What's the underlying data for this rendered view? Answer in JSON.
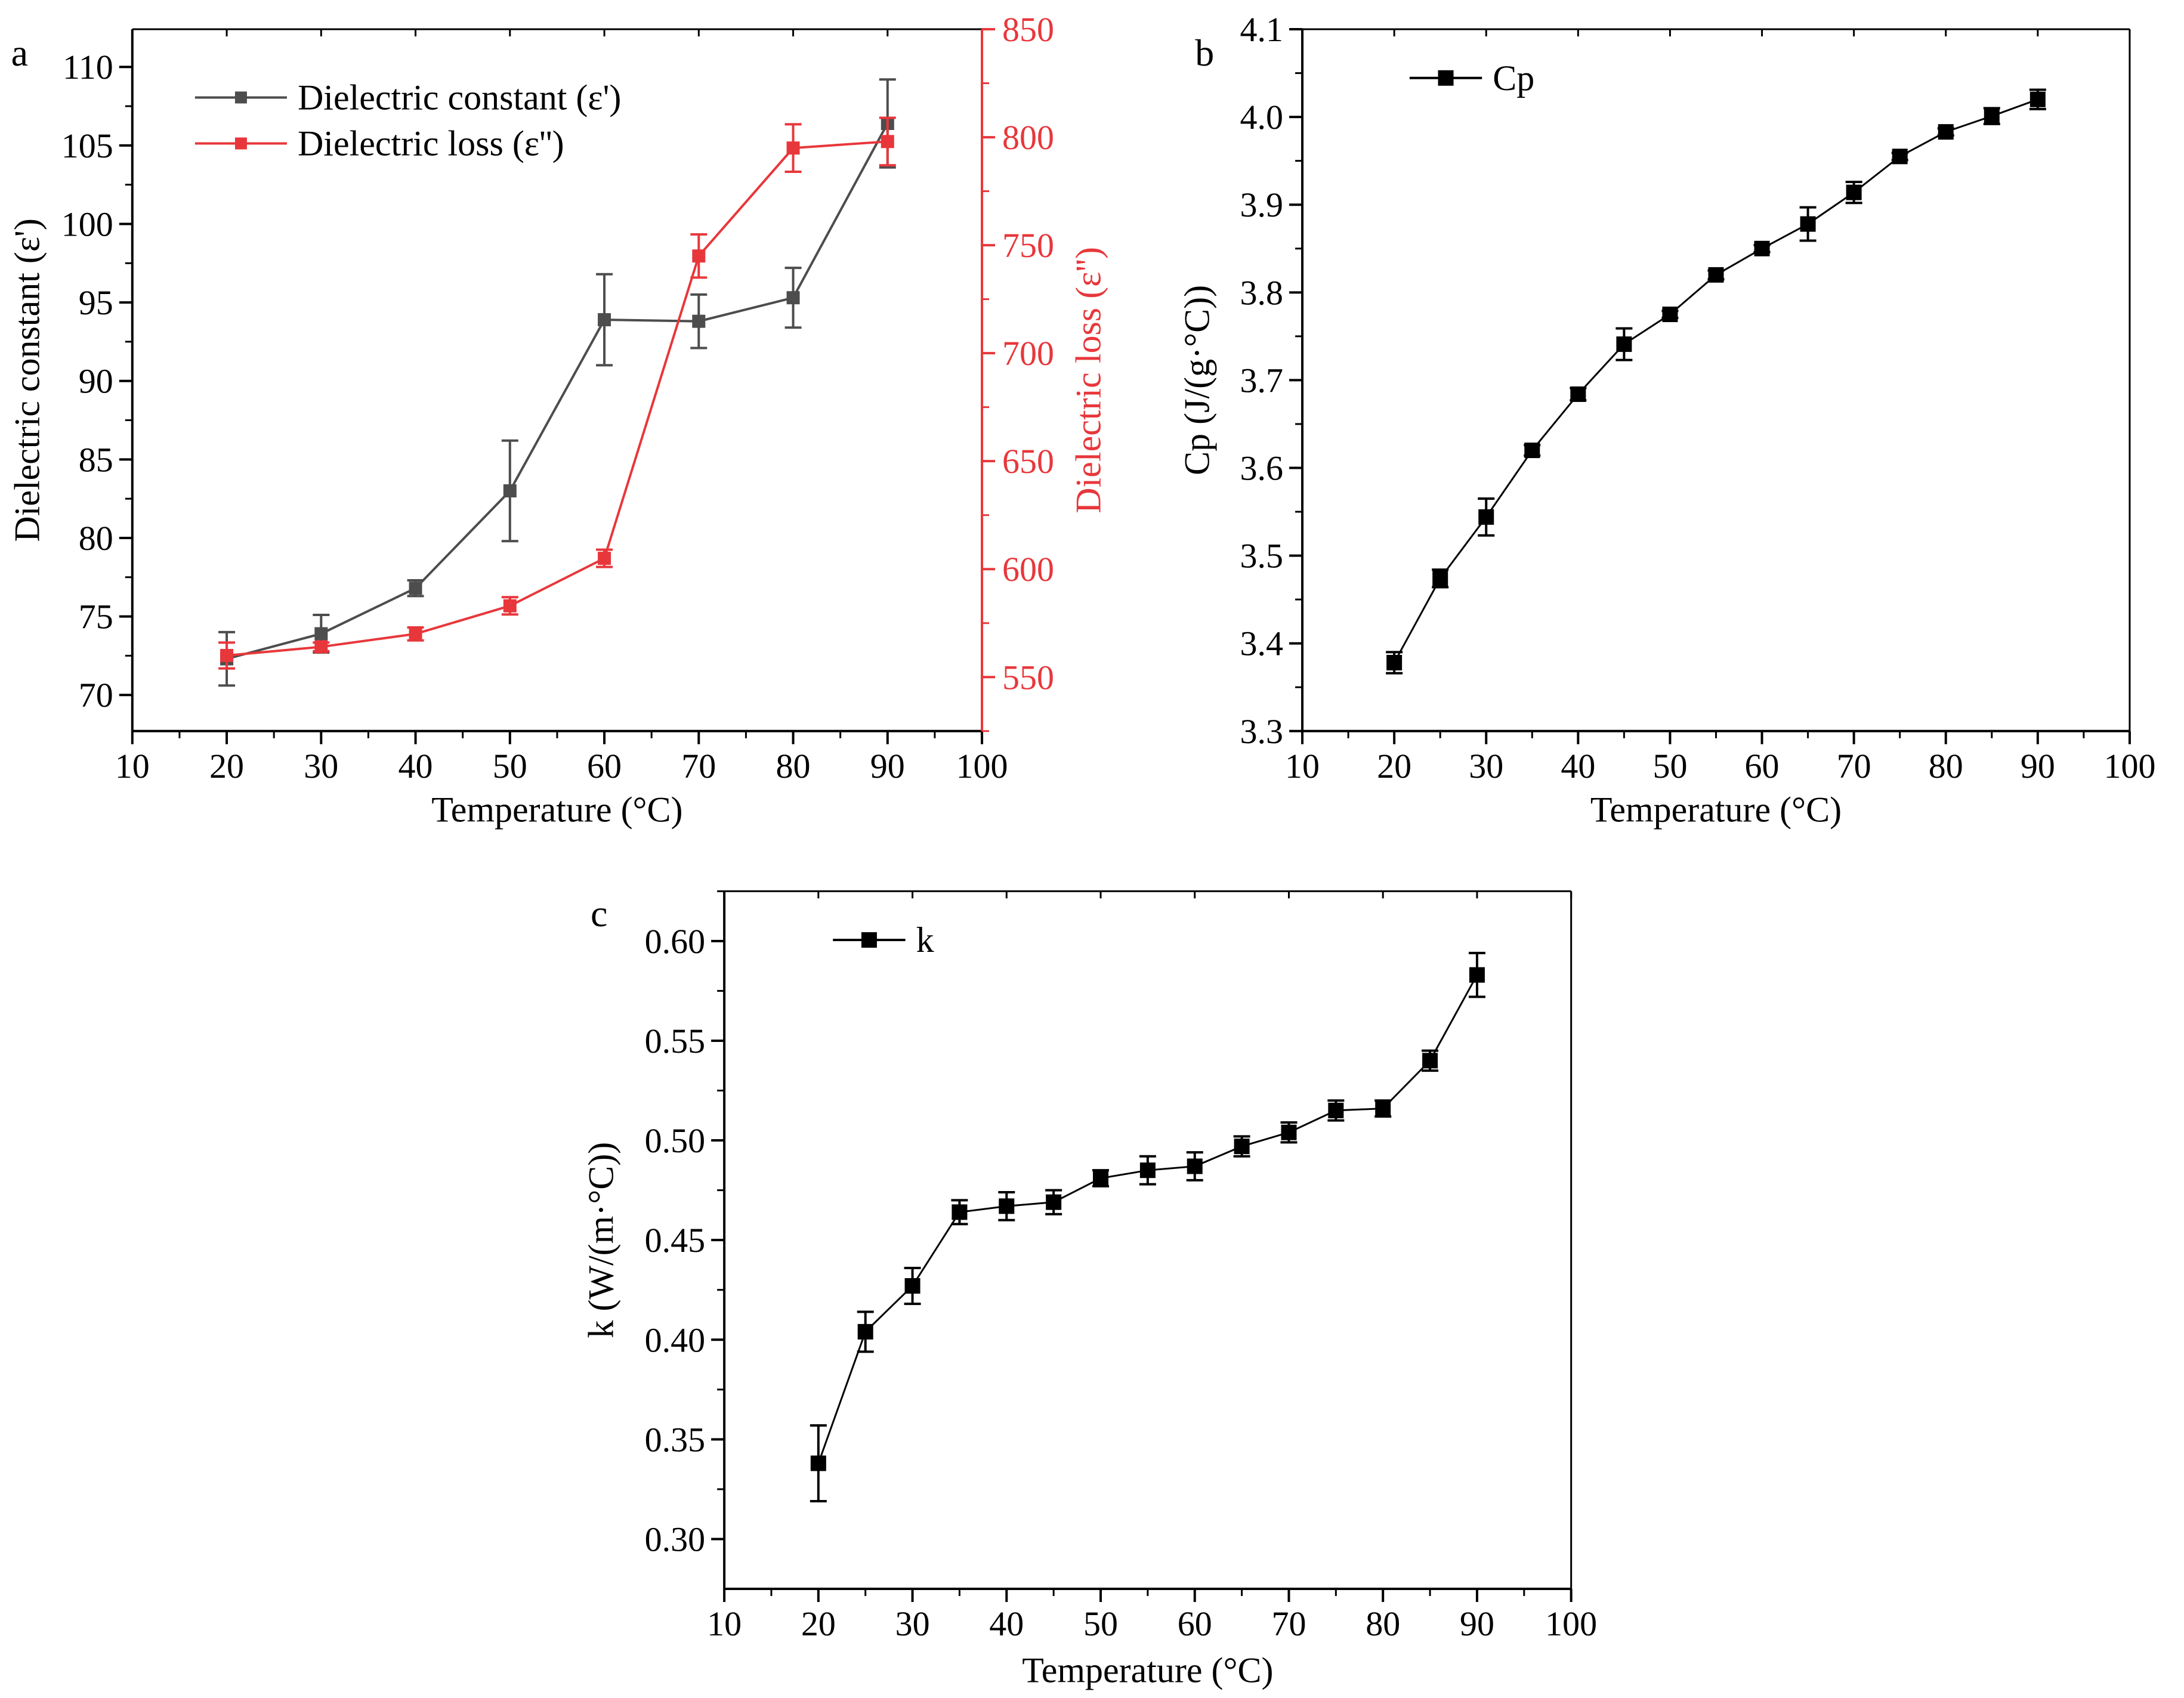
{
  "chart_data": [
    {
      "panel": "a",
      "type": "line",
      "title": "",
      "xlabel": "Temperature (°C)",
      "ylabel": "Dielectric constant (ε')",
      "y2label": "Dielectric loss (ε'')",
      "xlim": [
        10,
        100
      ],
      "ylim": [
        67.7,
        112.4
      ],
      "y2lim": [
        525,
        850
      ],
      "xticks": [
        10,
        20,
        30,
        40,
        50,
        60,
        70,
        80,
        90,
        100
      ],
      "yticks": [
        70,
        75,
        80,
        85,
        90,
        95,
        100,
        105,
        110
      ],
      "y2ticks": [
        550,
        600,
        650,
        700,
        750,
        800,
        850
      ],
      "legend_position": "top-left",
      "grid": false,
      "series": [
        {
          "name": "Dielectric constant (ε')",
          "axis": "left",
          "color": "#4d4d4d",
          "x": [
            20,
            30,
            40,
            50,
            60,
            70,
            80,
            90
          ],
          "y": [
            72.3,
            73.9,
            76.8,
            83.0,
            93.9,
            93.8,
            95.3,
            106.4
          ],
          "err": [
            1.7,
            1.2,
            0.5,
            3.2,
            2.9,
            1.7,
            1.9,
            2.8
          ]
        },
        {
          "name": "Dielectric loss (ε'')",
          "axis": "right",
          "color": "#e8373b",
          "x": [
            20,
            30,
            40,
            50,
            60,
            70,
            80,
            90
          ],
          "y": [
            560,
            564,
            570,
            583,
            605,
            745,
            795,
            798
          ],
          "err": [
            6,
            2,
            3,
            4,
            4,
            10,
            11,
            11
          ]
        }
      ]
    },
    {
      "panel": "b",
      "type": "line",
      "title": "",
      "xlabel": "Temperature (°C)",
      "ylabel": "Cp (J/(g·°C))",
      "xlim": [
        10,
        100
      ],
      "ylim": [
        3.3,
        4.1
      ],
      "xticks": [
        10,
        20,
        30,
        40,
        50,
        60,
        70,
        80,
        90,
        100
      ],
      "yticks": [
        3.3,
        3.4,
        3.5,
        3.6,
        3.7,
        3.8,
        3.9,
        4.0,
        4.1
      ],
      "ytick_labels": [
        "3.3",
        "3.4",
        "3.5",
        "3.6",
        "3.7",
        "3.8",
        "3.9",
        "4.0",
        "4.1"
      ],
      "legend_position": "top-left",
      "grid": false,
      "series": [
        {
          "name": "Cp",
          "color": "#000000",
          "x": [
            20,
            25,
            30,
            35,
            40,
            45,
            50,
            55,
            60,
            65,
            70,
            75,
            80,
            85,
            90
          ],
          "y": [
            3.378,
            3.474,
            3.544,
            3.62,
            3.684,
            3.741,
            3.775,
            3.82,
            3.85,
            3.878,
            3.914,
            3.955,
            3.983,
            4.001,
            4.02
          ],
          "err": [
            0.012,
            0.01,
            0.021,
            0.006,
            0.007,
            0.018,
            0.004,
            0.005,
            0.004,
            0.019,
            0.012,
            0.004,
            0.004,
            0.009,
            0.011
          ]
        }
      ]
    },
    {
      "panel": "c",
      "type": "line",
      "title": "",
      "xlabel": "Temperature (°C)",
      "ylabel": "k (W/(m·°C))",
      "xlim": [
        10,
        100
      ],
      "ylim": [
        0.275,
        0.625
      ],
      "xticks": [
        10,
        20,
        30,
        40,
        50,
        60,
        70,
        80,
        90,
        100
      ],
      "yticks": [
        0.3,
        0.35,
        0.4,
        0.45,
        0.5,
        0.55,
        0.6
      ],
      "ytick_labels": [
        "0.30",
        "0.35",
        "0.40",
        "0.45",
        "0.50",
        "0.55",
        "0.60"
      ],
      "legend_position": "top-left",
      "grid": false,
      "series": [
        {
          "name": "k",
          "color": "#000000",
          "x": [
            20,
            25,
            30,
            35,
            40,
            45,
            50,
            55,
            60,
            65,
            70,
            75,
            80,
            85,
            90
          ],
          "y": [
            0.338,
            0.404,
            0.427,
            0.464,
            0.467,
            0.469,
            0.481,
            0.485,
            0.487,
            0.497,
            0.504,
            0.515,
            0.516,
            0.54,
            0.583
          ],
          "err": [
            0.019,
            0.01,
            0.009,
            0.006,
            0.007,
            0.006,
            0.004,
            0.007,
            0.007,
            0.005,
            0.005,
            0.005,
            0.004,
            0.005,
            0.011
          ]
        }
      ]
    }
  ]
}
